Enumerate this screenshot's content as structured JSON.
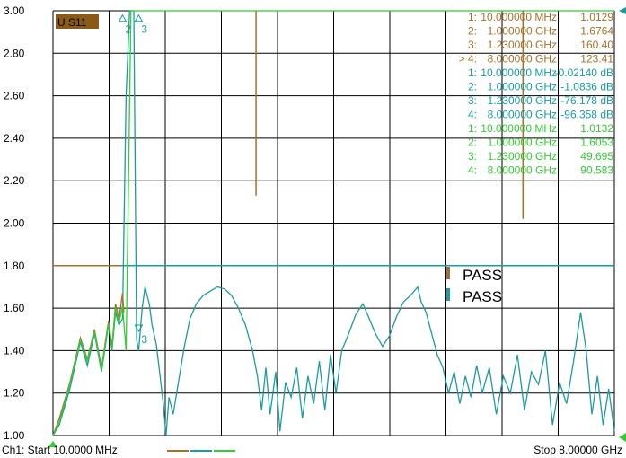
{
  "chart_data": {
    "type": "line",
    "trace_label": "U S11",
    "x_unit": "GHz",
    "xlim": [
      0.01,
      8.0
    ],
    "ylim": [
      1.0,
      3.0
    ],
    "yticks": [
      "3.00",
      "2.80",
      "2.60",
      "2.40",
      "2.20",
      "2.00",
      "1.80",
      "1.60",
      "1.40",
      "1.20",
      "1.00"
    ],
    "colors": {
      "teal": "#1a9ca0",
      "brown": "#a0722a",
      "green": "#33cc33"
    },
    "limit_line": {
      "from": 0.01,
      "to": 1.0,
      "value": 1.8,
      "color": "#a0722a"
    },
    "teal_limit": 1.8,
    "series": [
      {
        "color_key": "teal",
        "points": [
          [
            0.01,
            1.0
          ],
          [
            0.1,
            1.05
          ],
          [
            0.25,
            1.22
          ],
          [
            0.4,
            1.44
          ],
          [
            0.5,
            1.33
          ],
          [
            0.6,
            1.48
          ],
          [
            0.7,
            1.3
          ],
          [
            0.8,
            1.52
          ],
          [
            0.85,
            1.4
          ],
          [
            0.9,
            1.58
          ],
          [
            0.95,
            1.52
          ],
          [
            1.0,
            1.55
          ],
          [
            1.05,
            2.6
          ],
          [
            1.1,
            3.0
          ],
          [
            1.16,
            3.0
          ],
          [
            1.2,
            1.45
          ],
          [
            1.23,
            1.4
          ],
          [
            1.28,
            1.6
          ],
          [
            1.32,
            1.7
          ],
          [
            1.38,
            1.62
          ],
          [
            1.42,
            1.52
          ],
          [
            1.48,
            1.43
          ],
          [
            1.52,
            1.32
          ],
          [
            1.58,
            1.15
          ],
          [
            1.62,
            1.0
          ],
          [
            1.66,
            1.18
          ],
          [
            1.72,
            1.1
          ],
          [
            1.8,
            1.26
          ],
          [
            1.88,
            1.42
          ],
          [
            1.96,
            1.55
          ],
          [
            2.05,
            1.62
          ],
          [
            2.15,
            1.66
          ],
          [
            2.25,
            1.68
          ],
          [
            2.35,
            1.7
          ],
          [
            2.45,
            1.69
          ],
          [
            2.55,
            1.66
          ],
          [
            2.65,
            1.6
          ],
          [
            2.75,
            1.52
          ],
          [
            2.85,
            1.4
          ],
          [
            2.92,
            1.28
          ],
          [
            2.98,
            1.12
          ],
          [
            3.04,
            1.32
          ],
          [
            3.1,
            1.1
          ],
          [
            3.18,
            1.3
          ],
          [
            3.24,
            1.02
          ],
          [
            3.32,
            1.25
          ],
          [
            3.4,
            1.18
          ],
          [
            3.48,
            1.32
          ],
          [
            3.56,
            1.08
          ],
          [
            3.64,
            1.28
          ],
          [
            3.72,
            1.15
          ],
          [
            3.8,
            1.35
          ],
          [
            3.88,
            1.12
          ],
          [
            3.96,
            1.38
          ],
          [
            4.04,
            1.2
          ],
          [
            4.12,
            1.4
          ],
          [
            4.22,
            1.48
          ],
          [
            4.32,
            1.57
          ],
          [
            4.42,
            1.62
          ],
          [
            4.5,
            1.56
          ],
          [
            4.6,
            1.48
          ],
          [
            4.7,
            1.42
          ],
          [
            4.8,
            1.47
          ],
          [
            4.9,
            1.56
          ],
          [
            5.0,
            1.63
          ],
          [
            5.1,
            1.66
          ],
          [
            5.2,
            1.7
          ],
          [
            5.25,
            1.63
          ],
          [
            5.32,
            1.58
          ],
          [
            5.4,
            1.48
          ],
          [
            5.48,
            1.38
          ],
          [
            5.56,
            1.32
          ],
          [
            5.64,
            1.2
          ],
          [
            5.72,
            1.3
          ],
          [
            5.8,
            1.15
          ],
          [
            5.88,
            1.28
          ],
          [
            5.96,
            1.18
          ],
          [
            6.04,
            1.33
          ],
          [
            6.12,
            1.2
          ],
          [
            6.22,
            1.32
          ],
          [
            6.32,
            1.1
          ],
          [
            6.42,
            1.28
          ],
          [
            6.52,
            1.2
          ],
          [
            6.62,
            1.38
          ],
          [
            6.72,
            1.12
          ],
          [
            6.82,
            1.3
          ],
          [
            6.92,
            1.24
          ],
          [
            7.02,
            1.4
          ],
          [
            7.12,
            1.05
          ],
          [
            7.22,
            1.25
          ],
          [
            7.32,
            1.15
          ],
          [
            7.42,
            1.35
          ],
          [
            7.52,
            1.58
          ],
          [
            7.6,
            1.4
          ],
          [
            7.68,
            1.1
          ],
          [
            7.76,
            1.28
          ],
          [
            7.84,
            1.05
          ],
          [
            7.92,
            1.22
          ],
          [
            8.0,
            1.02
          ]
        ]
      },
      {
        "color_key": "brown",
        "points": [
          [
            0.01,
            1.0
          ],
          [
            0.1,
            1.08
          ],
          [
            0.25,
            1.25
          ],
          [
            0.4,
            1.46
          ],
          [
            0.5,
            1.36
          ],
          [
            0.6,
            1.5
          ],
          [
            0.7,
            1.32
          ],
          [
            0.8,
            1.54
          ],
          [
            0.85,
            1.42
          ],
          [
            0.9,
            1.62
          ],
          [
            0.95,
            1.55
          ],
          [
            1.0,
            1.67
          ],
          [
            1.02,
            1.58
          ]
        ]
      },
      {
        "color_key": "green",
        "points": [
          [
            0.01,
            1.0
          ],
          [
            0.1,
            1.06
          ],
          [
            0.25,
            1.24
          ],
          [
            0.4,
            1.45
          ],
          [
            0.5,
            1.35
          ],
          [
            0.6,
            1.49
          ],
          [
            0.7,
            1.31
          ],
          [
            0.8,
            1.53
          ],
          [
            0.85,
            1.41
          ],
          [
            0.9,
            1.6
          ],
          [
            0.95,
            1.53
          ],
          [
            1.0,
            1.61
          ],
          [
            1.05,
            1.4
          ],
          [
            1.12,
            3.0
          ],
          [
            1.16,
            3.0
          ],
          [
            8.0,
            3.0
          ]
        ]
      }
    ],
    "spikes": [
      {
        "x": 2.9,
        "from": 3.0,
        "to": 2.13,
        "color_key": "brown"
      },
      {
        "x": 6.7,
        "from": 3.0,
        "to": 2.02,
        "color_key": "brown"
      }
    ],
    "marker_table": [
      {
        "id": "1:",
        "freq": "10.000000 MHz",
        "value": "1.0129",
        "color_key": "brown"
      },
      {
        "id": "2:",
        "freq": "1.000000 GHz",
        "value": "1.6764",
        "color_key": "brown"
      },
      {
        "id": "3:",
        "freq": "1.230000 GHz",
        "value": "160.40",
        "color_key": "brown"
      },
      {
        "id": "> 4:",
        "freq": "8.000000 GHz",
        "value": "123.41",
        "color_key": "brown"
      },
      {
        "id": "1:",
        "freq": "10.000000 MHz",
        "value": "-0.02140 dB",
        "color_key": "teal"
      },
      {
        "id": "2:",
        "freq": "1.000000 GHz",
        "value": "-1.0836 dB",
        "color_key": "teal"
      },
      {
        "id": "3:",
        "freq": "1.230000 GHz",
        "value": "-76.178 dB",
        "color_key": "teal"
      },
      {
        "id": "4:",
        "freq": "8.000000 GHz",
        "value": "-96.358 dB",
        "color_key": "teal"
      },
      {
        "id": "1:",
        "freq": "10.000000 MHz",
        "value": "1.0132",
        "color_key": "green"
      },
      {
        "id": "2:",
        "freq": "1.000000 GHz",
        "value": "1.6053",
        "color_key": "green"
      },
      {
        "id": "3:",
        "freq": "1.230000 GHz",
        "value": "49.695",
        "color_key": "green"
      },
      {
        "id": "4:",
        "freq": "8.000000 GHz",
        "value": "90.583",
        "color_key": "green"
      }
    ],
    "graph_markers": [
      {
        "label": "2",
        "x": 1.0,
        "y": 2.98
      },
      {
        "label": "3",
        "x": 1.23,
        "y": 2.98
      },
      {
        "label": "3",
        "x": 1.23,
        "y": 1.52
      }
    ],
    "pass": [
      {
        "text": "PASS",
        "color_key": "brown"
      },
      {
        "text": "PASS",
        "color_key": "teal"
      }
    ],
    "footer": {
      "start": "Ch1: Start  10.0000 MHz",
      "stop": "Stop  8.00000 GHz"
    }
  }
}
